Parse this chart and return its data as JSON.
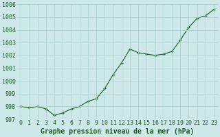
{
  "x": [
    0,
    1,
    2,
    3,
    4,
    5,
    6,
    7,
    8,
    9,
    10,
    11,
    12,
    13,
    14,
    15,
    16,
    17,
    18,
    19,
    20,
    21,
    22,
    23
  ],
  "y": [
    998.0,
    997.9,
    998.0,
    997.8,
    997.3,
    997.5,
    997.8,
    998.0,
    998.4,
    998.6,
    999.4,
    1000.5,
    1001.4,
    1002.5,
    1002.2,
    1002.1,
    1002.0,
    1002.1,
    1002.3,
    1003.2,
    1004.2,
    1004.9,
    1005.1,
    1005.6
  ],
  "bg_color": "#cce8e8",
  "line_color": "#1a5c1a",
  "marker_color": "#1a5c1a",
  "grid_color": "#aacece",
  "xlabel": "Graphe pression niveau de la mer (hPa)",
  "ylim": [
    997,
    1006
  ],
  "yticks": [
    997,
    998,
    999,
    1000,
    1001,
    1002,
    1003,
    1004,
    1005,
    1006
  ],
  "xticks": [
    0,
    1,
    2,
    3,
    4,
    5,
    6,
    7,
    8,
    9,
    10,
    11,
    12,
    13,
    14,
    15,
    16,
    17,
    18,
    19,
    20,
    21,
    22,
    23
  ],
  "xlabel_fontsize": 7.0,
  "tick_fontsize": 6.0
}
